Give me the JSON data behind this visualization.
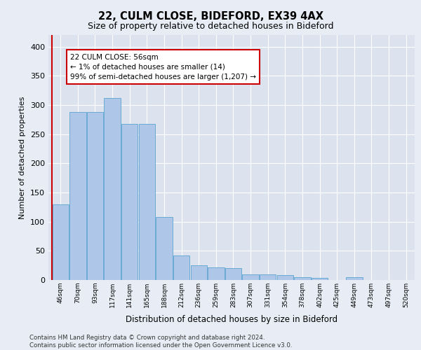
{
  "title1": "22, CULM CLOSE, BIDEFORD, EX39 4AX",
  "title2": "Size of property relative to detached houses in Bideford",
  "xlabel": "Distribution of detached houses by size in Bideford",
  "ylabel": "Number of detached properties",
  "bar_values": [
    130,
    288,
    288,
    312,
    268,
    268,
    108,
    42,
    25,
    22,
    20,
    10,
    10,
    8,
    5,
    4,
    0,
    5,
    0,
    0,
    0
  ],
  "categories": [
    "46sqm",
    "70sqm",
    "93sqm",
    "117sqm",
    "141sqm",
    "165sqm",
    "188sqm",
    "212sqm",
    "236sqm",
    "259sqm",
    "283sqm",
    "307sqm",
    "331sqm",
    "354sqm",
    "378sqm",
    "402sqm",
    "425sqm",
    "449sqm",
    "473sqm",
    "497sqm",
    "520sqm"
  ],
  "bar_color": "#aec6e8",
  "bar_edgecolor": "#6aaad4",
  "annotation_text": "22 CULM CLOSE: 56sqm\n← 1% of detached houses are smaller (14)\n99% of semi-detached houses are larger (1,207) →",
  "annotation_box_color": "#ffffff",
  "annotation_border_color": "#cc0000",
  "vline_color": "#cc0000",
  "background_color": "#e8edf5",
  "plot_bg_color": "#dce3ef",
  "footer_text": "Contains HM Land Registry data © Crown copyright and database right 2024.\nContains public sector information licensed under the Open Government Licence v3.0.",
  "ylim": [
    0,
    420
  ],
  "yticks": [
    0,
    50,
    100,
    150,
    200,
    250,
    300,
    350,
    400
  ]
}
